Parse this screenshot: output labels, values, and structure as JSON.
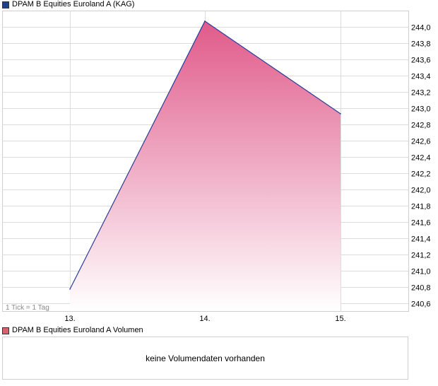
{
  "legend_main": {
    "label": "DPAM B Equities Euroland A (KAG)",
    "color": "#1f3f8f"
  },
  "legend_volume": {
    "label": "DPAM B Equities Euroland A Volumen",
    "color": "#d9616e"
  },
  "tick_note": "1 Tick = 1 Tag",
  "volume_message": "keine Volumendaten vorhanden",
  "colors": {
    "line": "#2a3c9a",
    "fill_top": "#e05a8a",
    "fill_bottom": "#ffffff",
    "grid": "#dcdcdc"
  },
  "chart_data": {
    "type": "area",
    "x": [
      "13.",
      "14.",
      "15."
    ],
    "series": [
      {
        "name": "DPAM B Equities Euroland A (KAG)",
        "values": [
          240.77,
          244.07,
          242.93
        ]
      }
    ],
    "y_ticks": [
      "240,6",
      "240,8",
      "241,0",
      "241,2",
      "241,4",
      "241,6",
      "241,8",
      "242,0",
      "242,2",
      "242,4",
      "242,6",
      "242,8",
      "243,0",
      "243,2",
      "243,4",
      "243,6",
      "243,8",
      "244,0"
    ],
    "ylim": [
      240.5,
      244.2
    ],
    "grid": true
  }
}
